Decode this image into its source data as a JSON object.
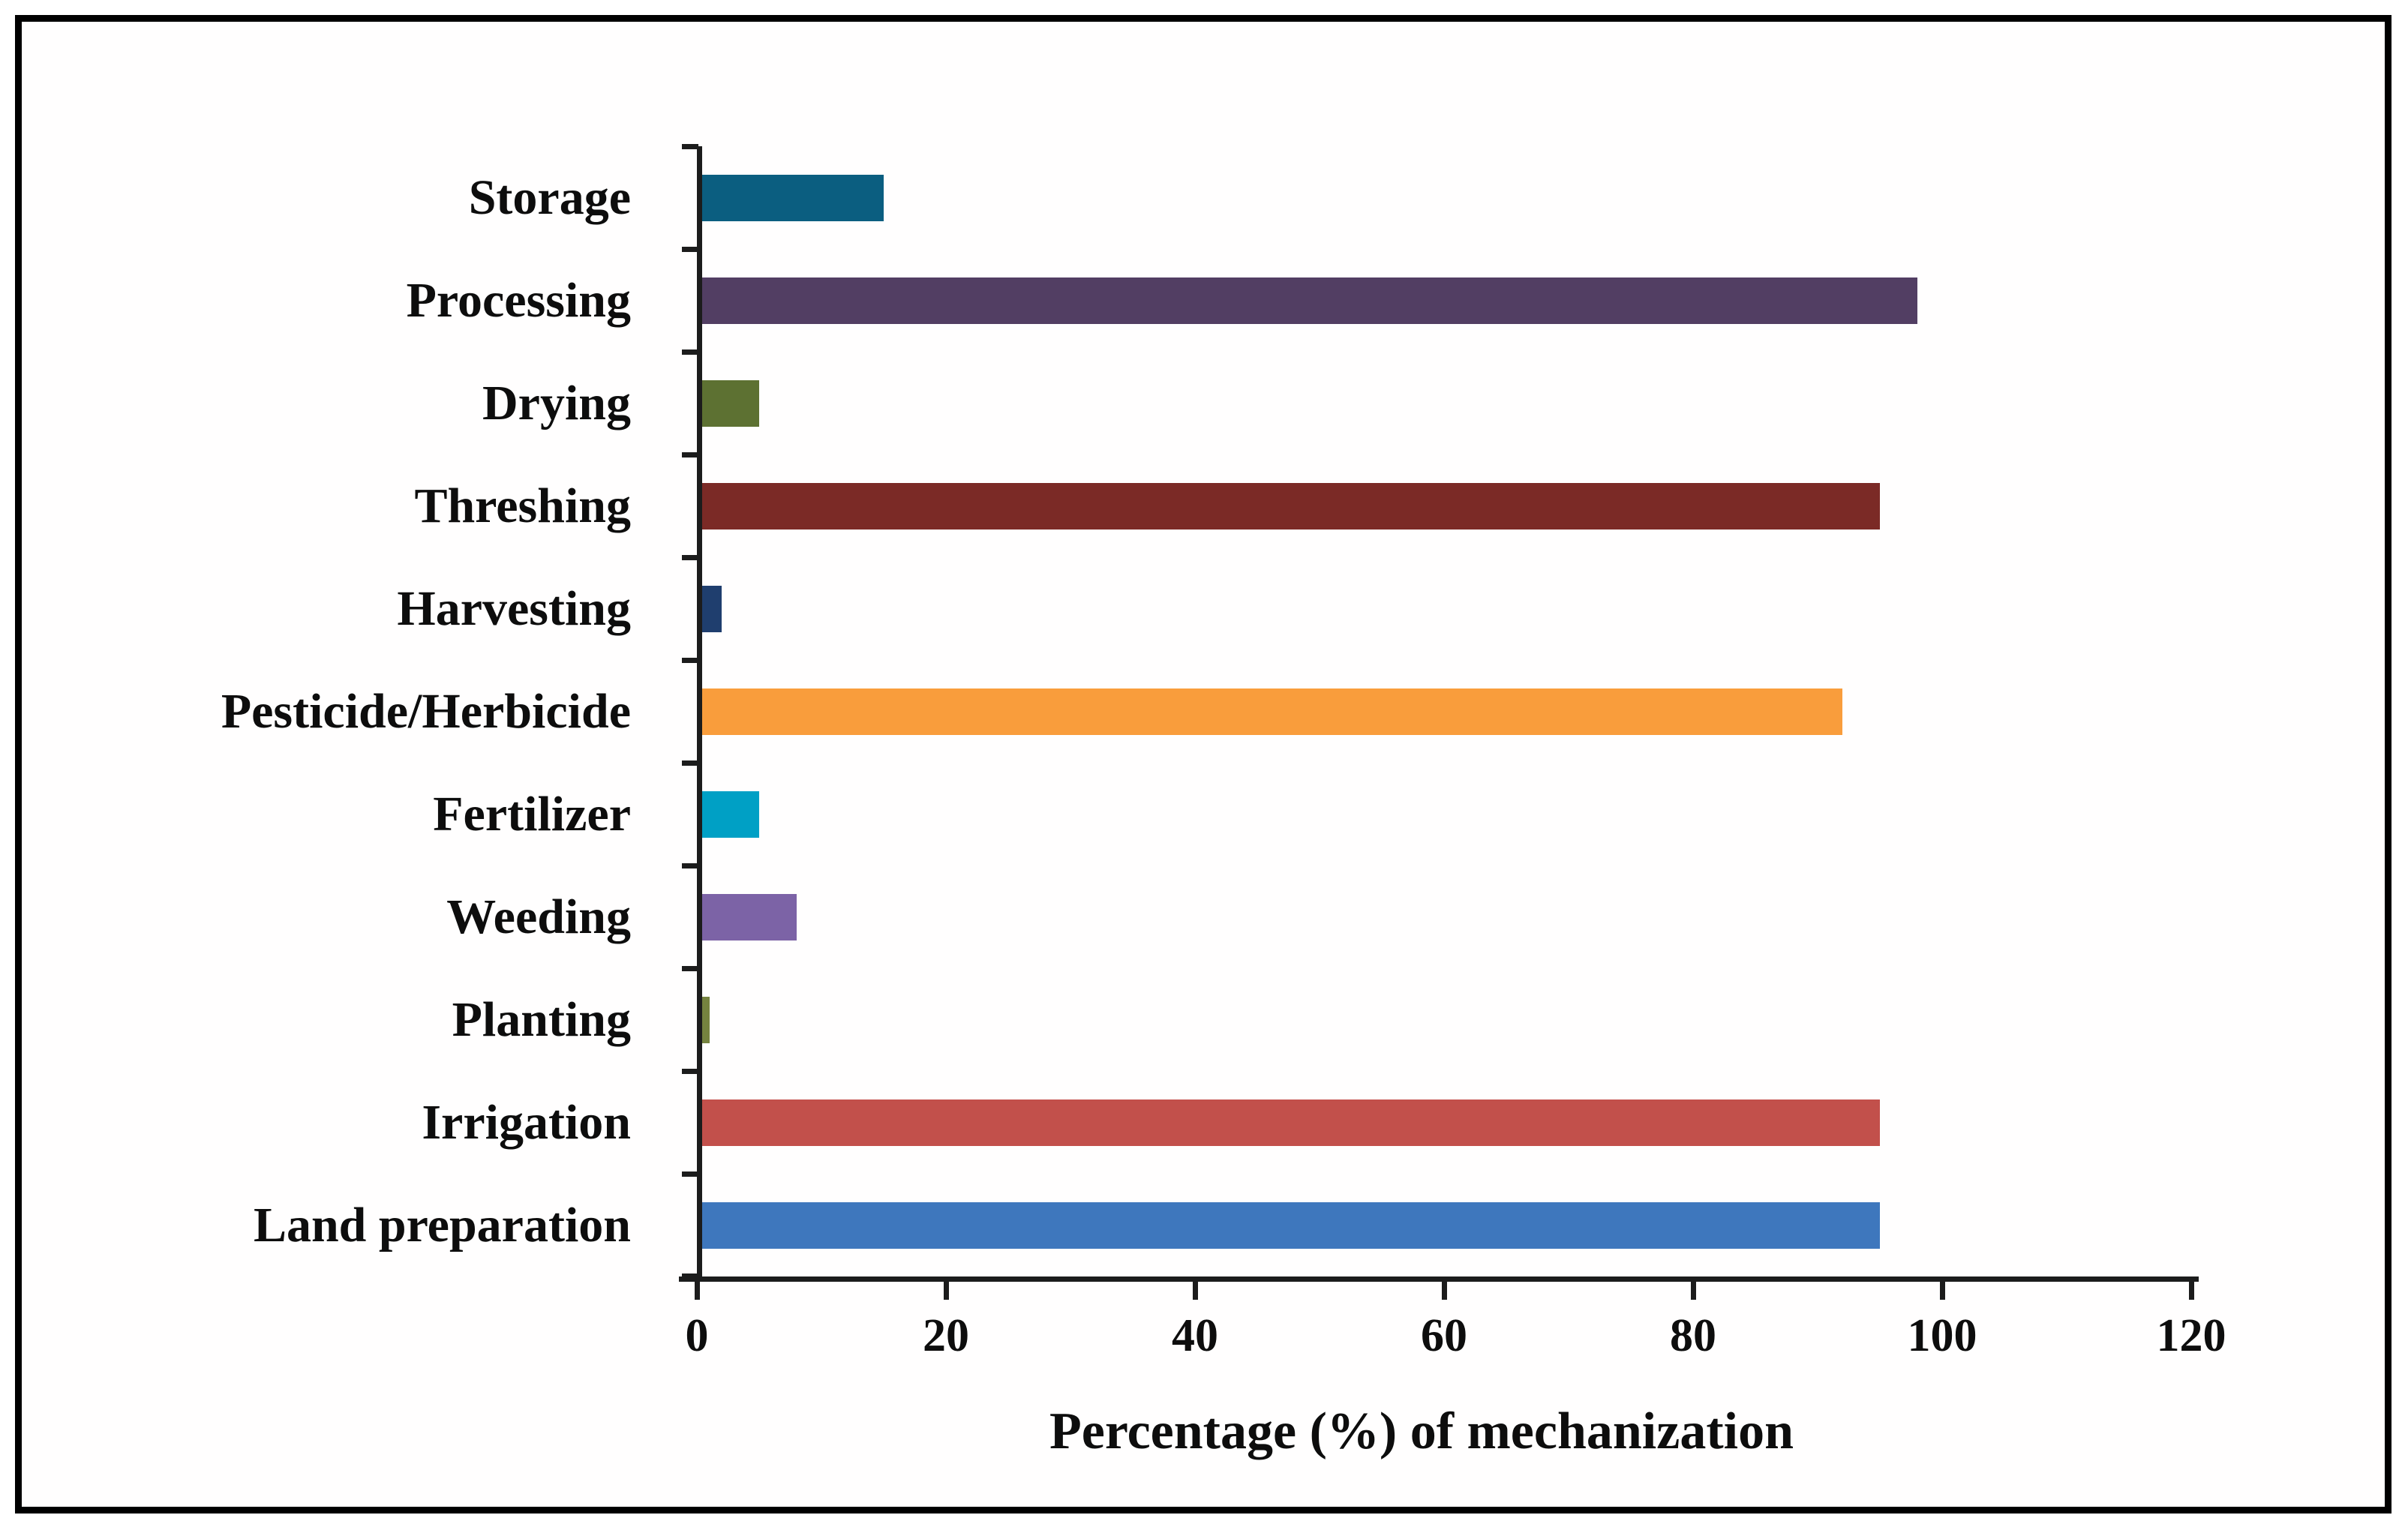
{
  "figure": {
    "background": "#ffffff",
    "border_color": "#000000"
  },
  "chart_data": {
    "type": "bar",
    "orientation": "horizontal",
    "title": "",
    "xlabel": "Percentage (%) of mechanization",
    "ylabel": "",
    "xlim": [
      0,
      120
    ],
    "x_ticks": [
      "0",
      "20",
      "40",
      "60",
      "80",
      "100",
      "120"
    ],
    "grid": false,
    "legend": "none",
    "categories": [
      "Storage",
      "Processing",
      "Drying",
      "Threshing",
      "Harvesting",
      "Pesticide/Herbicide",
      "Fertilizer",
      "Weeding",
      "Planting",
      "Irrigation",
      "Land preparation"
    ],
    "values": [
      15,
      98,
      5,
      95,
      2,
      92,
      5,
      8,
      1,
      95,
      95
    ],
    "bar_colors": [
      "#0B5E80",
      "#523E63",
      "#5D7132",
      "#7B2A26",
      "#1F3E6E",
      "#F99D3C",
      "#00A0C5",
      "#7C63A6",
      "#75833F",
      "#C2504B",
      "#3E77BD"
    ],
    "axis_color": "#1c1c1c",
    "text_color": "#0d0d0d"
  }
}
